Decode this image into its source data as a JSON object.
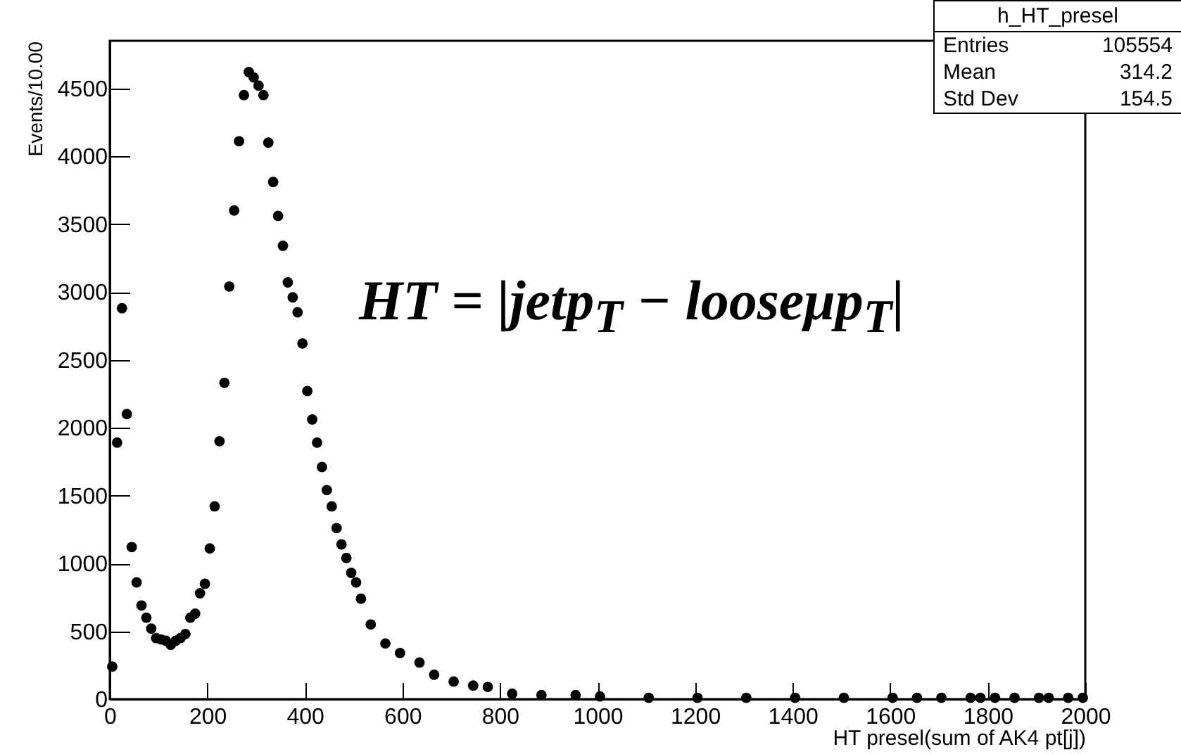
{
  "chart_data": {
    "type": "scatter",
    "xlabel": "HT presel(sum of AK4 pt[j])",
    "ylabel": "Events/10.00",
    "annotations": [
      "h_HT_presel",
      "Entries 105554",
      "Mean 314.2",
      "Std Dev 154.5",
      "HT = |jetp$_{T}$ − looseμp$_{T}$|"
    ],
    "series": [
      {
        "color": "#000000",
        "x": [
          5,
          15,
          25,
          35,
          45,
          55,
          65,
          75,
          85,
          95,
          105,
          115,
          125,
          135,
          145,
          155,
          165,
          175,
          185,
          195,
          205,
          215,
          225,
          235,
          245,
          255,
          265,
          275,
          285,
          295,
          305,
          315,
          325,
          335,
          345,
          355,
          365,
          375,
          385,
          395,
          405,
          415,
          425,
          435,
          445,
          455,
          465,
          475,
          485,
          495,
          505,
          515,
          535,
          565,
          595,
          635,
          665,
          705,
          745,
          775,
          825,
          885,
          955,
          1005,
          1105,
          1205,
          1305,
          1405,
          1505,
          1605,
          1655,
          1705,
          1765,
          1785,
          1815,
          1855,
          1905,
          1925,
          1965,
          1995
        ],
        "values": [
          240,
          1890,
          2880,
          2100,
          1120,
          860,
          690,
          600,
          520,
          450,
          440,
          430,
          400,
          430,
          450,
          480,
          600,
          630,
          780,
          850,
          1110,
          1420,
          1900,
          2330,
          3040,
          3600,
          4110,
          4450,
          4620,
          4580,
          4520,
          4450,
          4100,
          3810,
          3560,
          3340,
          3070,
          2960,
          2850,
          2620,
          2270,
          2060,
          1890,
          1710,
          1540,
          1420,
          1260,
          1140,
          1040,
          930,
          860,
          740,
          550,
          410,
          340,
          270,
          180,
          130,
          100,
          90,
          40,
          30,
          30,
          20,
          10,
          10,
          10,
          10,
          10,
          10,
          10,
          10,
          10,
          10,
          10,
          10,
          10,
          10,
          10,
          10
        ]
      }
    ],
    "xlim": [
      0,
      2000
    ],
    "xticks": [
      0,
      200,
      400,
      600,
      800,
      1000,
      1200,
      1400,
      1600,
      1800,
      2000
    ],
    "ylim": [
      0,
      4850
    ],
    "yticks": [
      0,
      500,
      1000,
      1500,
      2000,
      2500,
      3000,
      3500,
      4000,
      4500
    ],
    "grid": false,
    "marker": "circle"
  }
}
